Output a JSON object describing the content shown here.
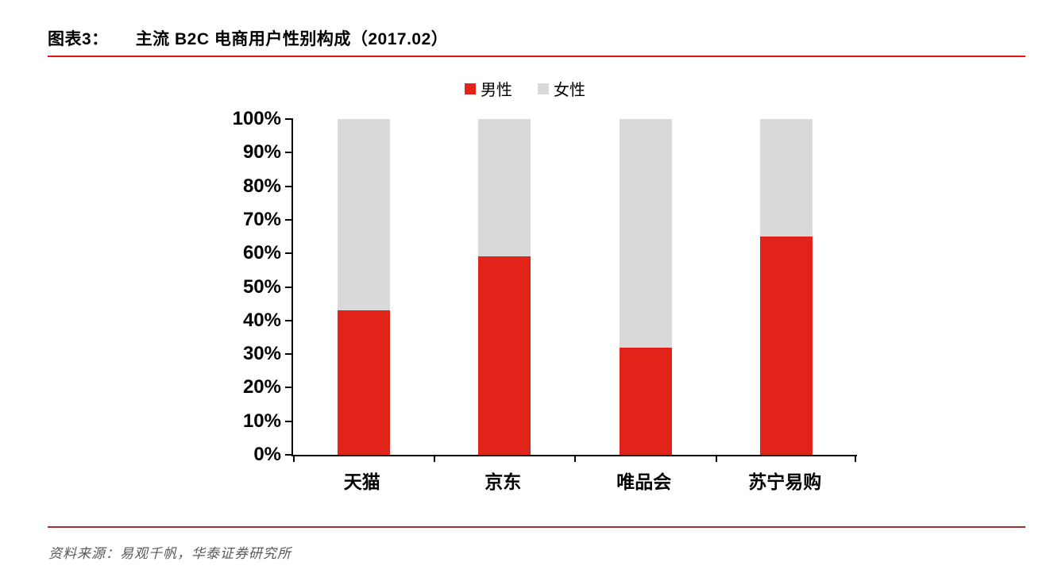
{
  "header": {
    "label": "图表3：",
    "title": "主流 B2C 电商用户性别构成（2017.02）"
  },
  "source": {
    "text": "资料来源：易观千帆，华泰证券研究所"
  },
  "colors": {
    "male_red": "#e2231a",
    "female_gray": "#d9d9d9",
    "title_rule_red": "#ee1311",
    "footer_rule_dark_red": "#953735",
    "source_text_gray": "#595959",
    "axis_black": "#000000"
  },
  "chart_data": {
    "type": "bar",
    "stacked": true,
    "title": "主流 B2C 电商用户性别构成（2017.02）",
    "categories": [
      "天猫",
      "京东",
      "唯品会",
      "苏宁易购"
    ],
    "series": [
      {
        "name": "男性",
        "color": "#e2231a",
        "values": [
          43,
          59,
          32,
          65
        ]
      },
      {
        "name": "女性",
        "color": "#d9d9d9",
        "values": [
          57,
          41,
          68,
          35
        ]
      }
    ],
    "xlabel": "",
    "ylabel": "",
    "ylim": [
      0,
      100
    ],
    "yticks": [
      "0%",
      "10%",
      "20%",
      "30%",
      "40%",
      "50%",
      "60%",
      "70%",
      "80%",
      "90%",
      "100%"
    ],
    "grid": false,
    "legend_position": "top-center"
  }
}
